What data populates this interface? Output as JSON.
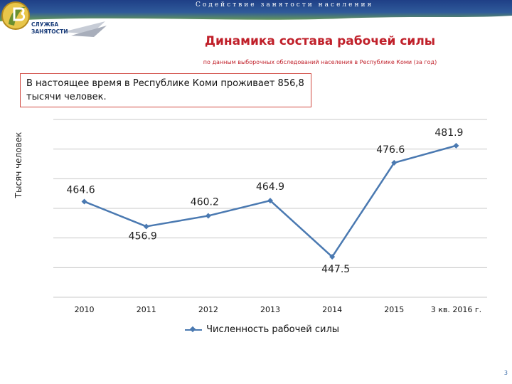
{
  "header": {
    "tagline": "Содействие занятости населения",
    "logo_text_line1": "СЛУЖБА",
    "logo_text_line2": "ЗАНЯТОСТИ"
  },
  "title": "Динамика состава рабочей силы",
  "subtitle": "по данным выборочных обследований населения в Республике Коми (за год)",
  "note": "В настоящее время в Республике Коми проживает 856,8 тысячи человек.",
  "page_number": "3",
  "colors": {
    "title": "#c0202a",
    "series": "#4a79b1",
    "note_border": "#d04a42"
  },
  "chart_data": {
    "type": "line",
    "ylabel": "Тысяч человек",
    "categories": [
      "2010",
      "2011",
      "2012",
      "2013",
      "2014",
      "2015",
      "3 кв. 2016 г."
    ],
    "series": [
      {
        "name": "Численность рабочей силы",
        "values": [
          464.6,
          456.9,
          460.2,
          464.9,
          447.5,
          476.6,
          481.9
        ],
        "labels": [
          "464.6",
          "456.9",
          "460.2",
          "464.9",
          "447.5",
          "476.6",
          "481.9"
        ]
      }
    ],
    "ylim": [
      435,
      490
    ],
    "grid": true,
    "legend": "bottom",
    "marker": "diamond"
  }
}
